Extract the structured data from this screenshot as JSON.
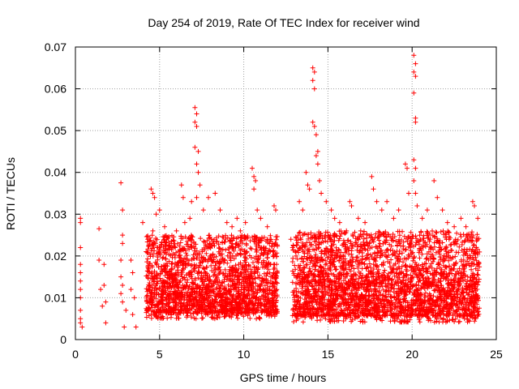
{
  "chart_data": {
    "type": "scatter",
    "title": "Day 254 of 2019, Rate Of TEC Index for receiver wind",
    "xlabel": "GPS time / hours",
    "ylabel": "ROTI / TECUs",
    "xlim": [
      0,
      25
    ],
    "ylim": [
      0,
      0.07
    ],
    "x_ticks": [
      0,
      5,
      10,
      15,
      20,
      25
    ],
    "y_ticks": [
      0,
      0.01,
      0.02,
      0.03,
      0.04,
      0.05,
      0.06,
      0.07
    ],
    "x_tick_labels": [
      "0",
      "5",
      "10",
      "15",
      "20",
      "25"
    ],
    "y_tick_labels": [
      "0",
      "0.01",
      "0.02",
      "0.03",
      "0.04",
      "0.05",
      "0.06",
      "0.07"
    ],
    "grid": true,
    "marker": "+",
    "color": "#ff0000",
    "series": [
      {
        "name": "ROTI",
        "points": [
          [
            0.3,
            0.029
          ],
          [
            0.3,
            0.028
          ],
          [
            0.3,
            0.022
          ],
          [
            0.3,
            0.018
          ],
          [
            0.3,
            0.016
          ],
          [
            0.3,
            0.014
          ],
          [
            0.3,
            0.012
          ],
          [
            0.3,
            0.01
          ],
          [
            0.3,
            0.007
          ],
          [
            0.3,
            0.005
          ],
          [
            0.3,
            0.004
          ],
          [
            0.4,
            0.003
          ],
          [
            1.4,
            0.0265
          ],
          [
            1.4,
            0.019
          ],
          [
            1.5,
            0.012
          ],
          [
            1.6,
            0.008
          ],
          [
            1.7,
            0.018
          ],
          [
            1.7,
            0.013
          ],
          [
            1.8,
            0.009
          ],
          [
            1.8,
            0.004
          ],
          [
            2.7,
            0.0375
          ],
          [
            2.8,
            0.031
          ],
          [
            2.8,
            0.025
          ],
          [
            2.8,
            0.023
          ],
          [
            2.7,
            0.019
          ],
          [
            2.7,
            0.015
          ],
          [
            2.8,
            0.013
          ],
          [
            2.7,
            0.011
          ],
          [
            2.8,
            0.009
          ],
          [
            3.0,
            0.007
          ],
          [
            2.9,
            0.003
          ],
          [
            3.3,
            0.019
          ],
          [
            3.4,
            0.016
          ],
          [
            3.3,
            0.012
          ],
          [
            3.5,
            0.01
          ],
          [
            3.4,
            0.006
          ],
          [
            3.6,
            0.003
          ],
          [
            4.0,
            0.028
          ],
          [
            4.3,
            0.024
          ],
          [
            4.5,
            0.036
          ],
          [
            4.6,
            0.035
          ],
          [
            4.7,
            0.034
          ],
          [
            4.8,
            0.03
          ],
          [
            4.6,
            0.026
          ],
          [
            4.9,
            0.022
          ],
          [
            5.0,
            0.031
          ],
          [
            5.3,
            0.027
          ],
          [
            5.7,
            0.023
          ],
          [
            6.0,
            0.026
          ],
          [
            6.3,
            0.037
          ],
          [
            6.4,
            0.034
          ],
          [
            6.5,
            0.028
          ],
          [
            6.8,
            0.029
          ],
          [
            6.9,
            0.033
          ],
          [
            7.1,
            0.0555
          ],
          [
            7.2,
            0.054
          ],
          [
            7.1,
            0.052
          ],
          [
            7.2,
            0.051
          ],
          [
            7.1,
            0.046
          ],
          [
            7.3,
            0.045
          ],
          [
            7.2,
            0.042
          ],
          [
            7.3,
            0.04
          ],
          [
            7.4,
            0.037
          ],
          [
            7.2,
            0.034
          ],
          [
            7.6,
            0.031
          ],
          [
            7.9,
            0.034
          ],
          [
            8.3,
            0.035
          ],
          [
            8.6,
            0.031
          ],
          [
            9.0,
            0.028
          ],
          [
            9.3,
            0.027
          ],
          [
            9.6,
            0.029
          ],
          [
            9.8,
            0.026
          ],
          [
            10.1,
            0.028
          ],
          [
            10.5,
            0.041
          ],
          [
            10.6,
            0.039
          ],
          [
            10.7,
            0.038
          ],
          [
            10.6,
            0.036
          ],
          [
            10.8,
            0.031
          ],
          [
            11.0,
            0.029
          ],
          [
            11.4,
            0.027
          ],
          [
            11.8,
            0.032
          ],
          [
            11.9,
            0.031
          ],
          [
            12.8,
            0.024
          ],
          [
            12.9,
            0.022
          ],
          [
            13.1,
            0.02
          ],
          [
            13.3,
            0.033
          ],
          [
            13.5,
            0.031
          ],
          [
            13.7,
            0.04
          ],
          [
            13.8,
            0.037
          ],
          [
            13.9,
            0.036
          ],
          [
            14.1,
            0.065
          ],
          [
            14.2,
            0.064
          ],
          [
            14.1,
            0.062
          ],
          [
            14.2,
            0.06
          ],
          [
            14.1,
            0.052
          ],
          [
            14.2,
            0.051
          ],
          [
            14.3,
            0.049
          ],
          [
            14.4,
            0.045
          ],
          [
            14.3,
            0.044
          ],
          [
            14.4,
            0.042
          ],
          [
            14.5,
            0.038
          ],
          [
            14.6,
            0.035
          ],
          [
            14.9,
            0.033
          ],
          [
            15.2,
            0.031
          ],
          [
            15.4,
            0.029
          ],
          [
            15.7,
            0.028
          ],
          [
            16.1,
            0.026
          ],
          [
            16.3,
            0.033
          ],
          [
            16.4,
            0.032
          ],
          [
            16.8,
            0.029
          ],
          [
            17.2,
            0.028
          ],
          [
            17.6,
            0.039
          ],
          [
            17.7,
            0.036
          ],
          [
            17.9,
            0.033
          ],
          [
            18.2,
            0.031
          ],
          [
            18.5,
            0.033
          ],
          [
            18.9,
            0.029
          ],
          [
            19.2,
            0.031
          ],
          [
            19.6,
            0.042
          ],
          [
            19.7,
            0.041
          ],
          [
            19.8,
            0.035
          ],
          [
            20.1,
            0.068
          ],
          [
            20.2,
            0.066
          ],
          [
            20.1,
            0.064
          ],
          [
            20.2,
            0.063
          ],
          [
            20.1,
            0.059
          ],
          [
            20.2,
            0.053
          ],
          [
            20.2,
            0.052
          ],
          [
            20.1,
            0.043
          ],
          [
            20.2,
            0.041
          ],
          [
            20.1,
            0.038
          ],
          [
            20.2,
            0.035
          ],
          [
            20.3,
            0.032
          ],
          [
            20.6,
            0.029
          ],
          [
            20.9,
            0.031
          ],
          [
            21.3,
            0.038
          ],
          [
            21.5,
            0.034
          ],
          [
            21.8,
            0.031
          ],
          [
            22.1,
            0.028
          ],
          [
            22.5,
            0.027
          ],
          [
            22.9,
            0.029
          ],
          [
            23.2,
            0.027
          ],
          [
            23.6,
            0.033
          ],
          [
            23.7,
            0.032
          ],
          [
            23.9,
            0.029
          ]
        ],
        "bands": [
          [
            4.2,
            12.0,
            0.003,
            0.025
          ],
          [
            12.9,
            24.0,
            0.002,
            0.026
          ]
        ]
      }
    ]
  }
}
